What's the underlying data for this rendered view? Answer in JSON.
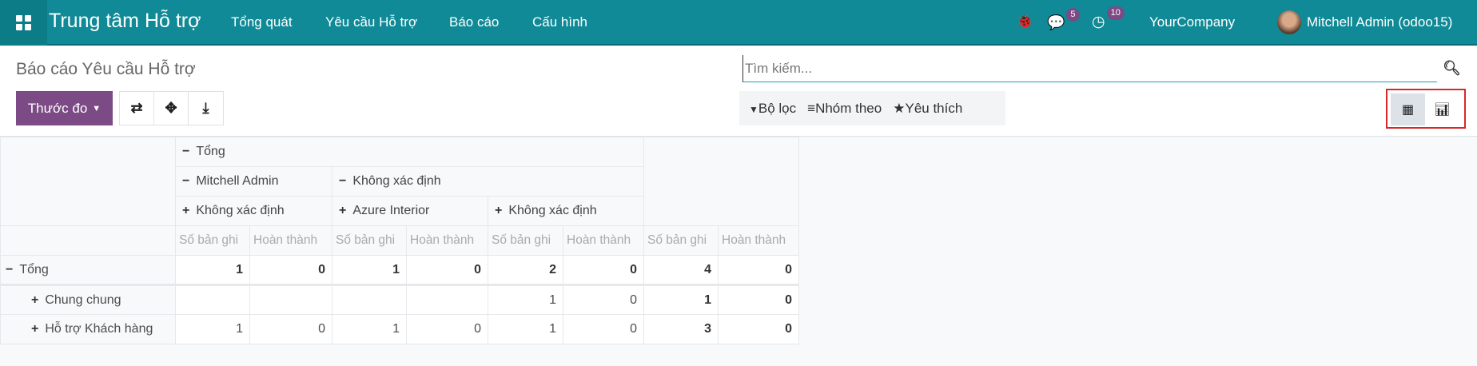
{
  "navbar": {
    "app_title": "Trung tâm Hỗ trợ",
    "menu": [
      "Tổng quát",
      "Yêu cầu Hỗ trợ",
      "Báo cáo",
      "Cấu hình"
    ],
    "messages_count": "5",
    "activities_count": "10",
    "company": "YourCompany",
    "user": "Mitchell Admin (odoo15)",
    "color": "#0f8a96"
  },
  "control": {
    "breadcrumb": "Báo cáo Yêu cầu Hỗ trợ",
    "measures_label": "Thước đo",
    "search_placeholder": "Tìm kiếm...",
    "filters": "Bộ lọc",
    "group_by": "Nhóm theo",
    "favorites": "Yêu thích",
    "active_view": "pivot",
    "accent": "#7c4a85"
  },
  "pivot": {
    "col_total": "Tổng",
    "col_groups": [
      "Mitchell Admin",
      "Không xác định"
    ],
    "col_subgroups": [
      "Không xác định",
      "Azure Interior",
      "Không xác định"
    ],
    "measures": [
      "Số bản ghi",
      "Hoàn thành"
    ],
    "rows": [
      {
        "label": "Tổng",
        "values": [
          "1",
          "0",
          "1",
          "0",
          "2",
          "0",
          "4",
          "0"
        ]
      },
      {
        "label": "Chung chung",
        "values": [
          "",
          "",
          "",
          "",
          "1",
          "0",
          "1",
          "0"
        ]
      },
      {
        "label": "Hỗ trợ Khách hàng",
        "values": [
          "1",
          "0",
          "1",
          "0",
          "1",
          "0",
          "3",
          "0"
        ]
      }
    ]
  }
}
